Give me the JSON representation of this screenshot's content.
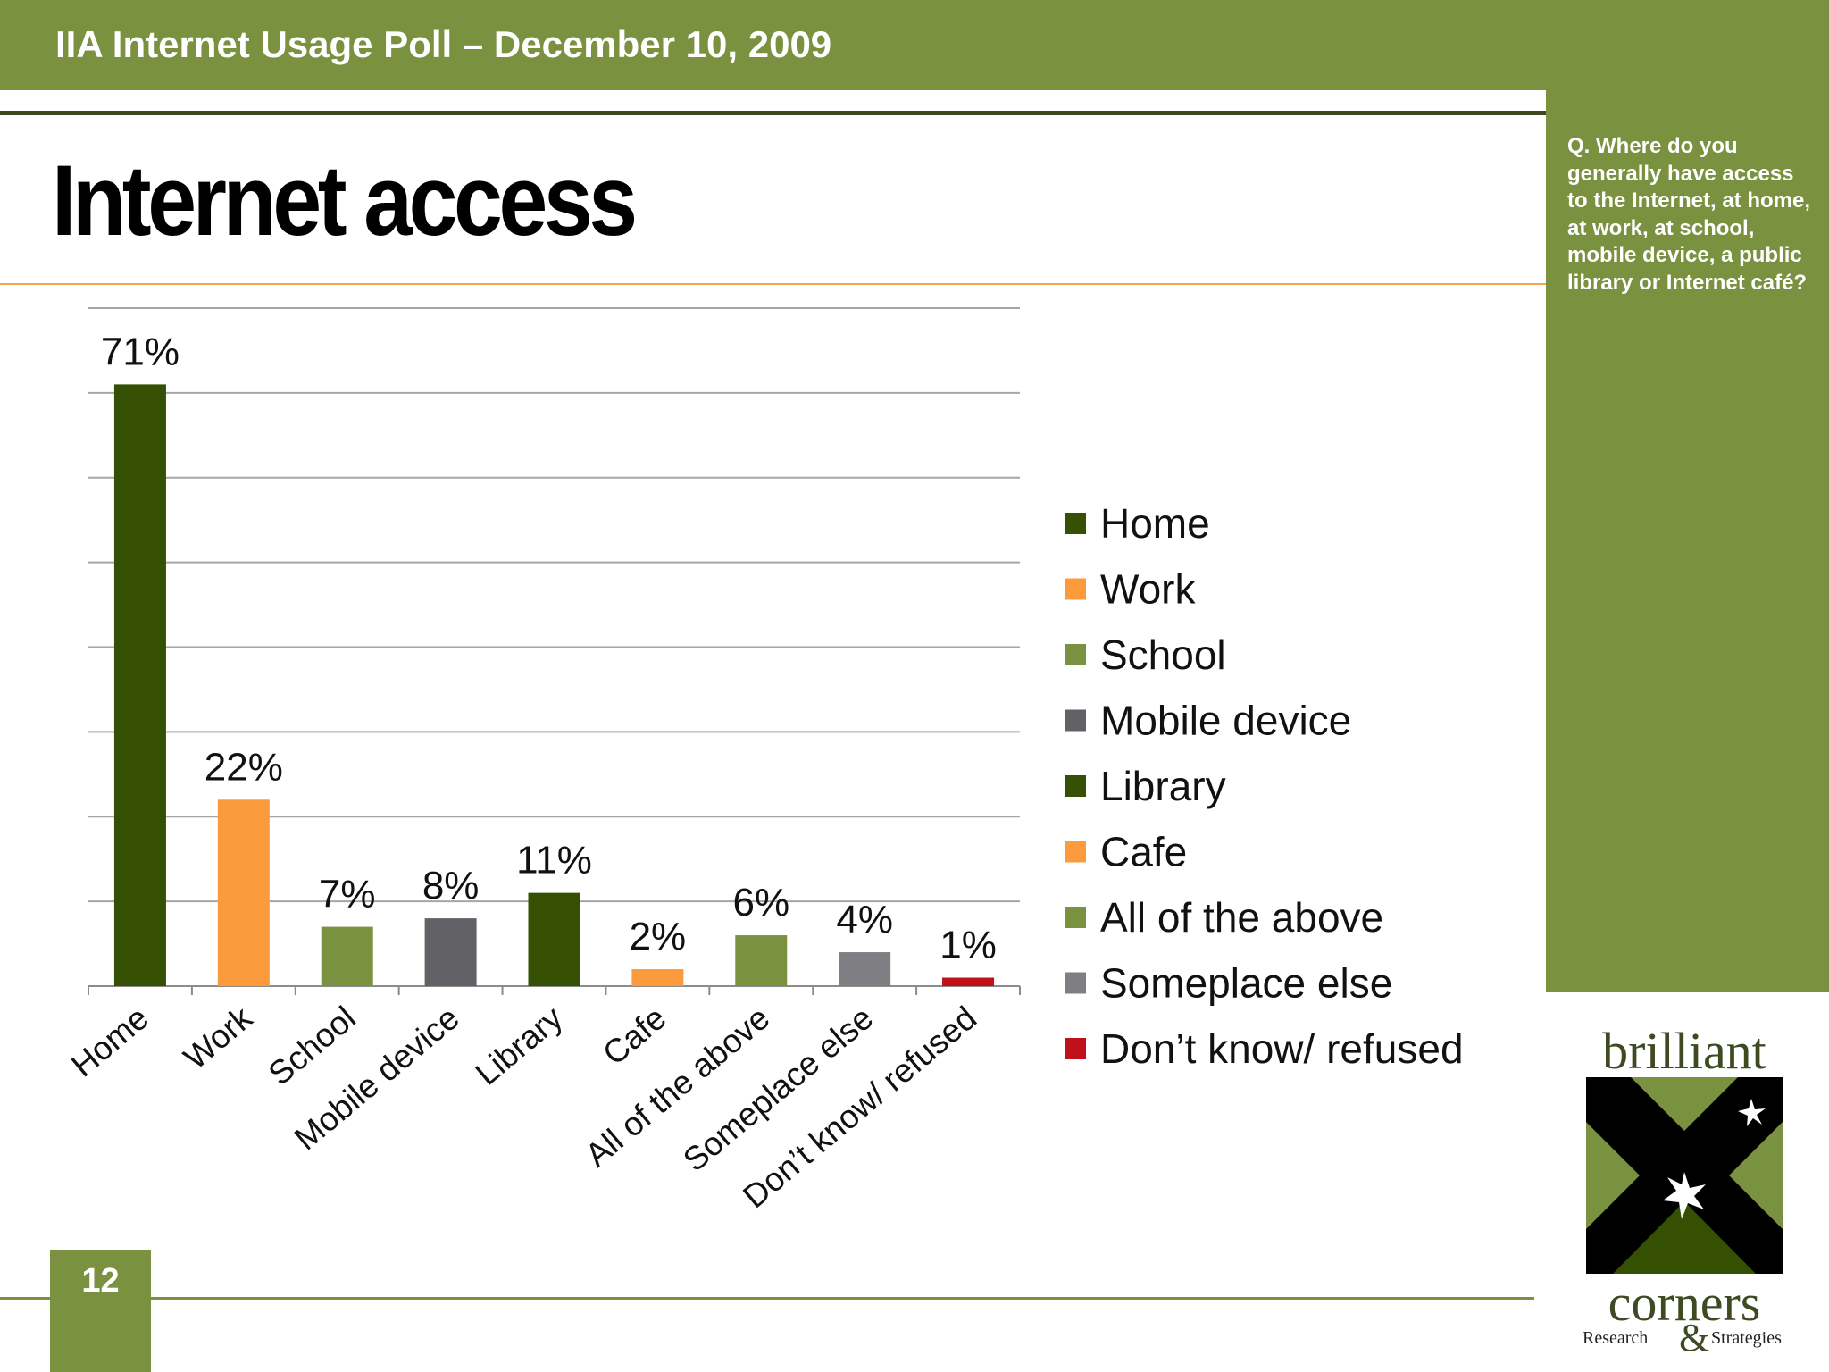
{
  "header": {
    "title": "IIA Internet Usage Poll – December 10, 2009"
  },
  "page": {
    "title": "Internet access",
    "number": "12"
  },
  "sidebar": {
    "question": "Q. Where do you generally have access to the Internet, at home, at work, at school, mobile device, a public library or Internet café?"
  },
  "logo": {
    "word_top": "brilliant",
    "word_bottom": "corners",
    "tag_left": "Research",
    "ampersand": "&",
    "tag_right": "Strategies"
  },
  "colors": {
    "accent_green": "#7a9140",
    "dark_green": "#354f03",
    "orange": "#fb9b3c",
    "gray_dark": "#626266",
    "gray": "#7f7f83",
    "red": "#c0111a"
  },
  "chart_data": {
    "type": "bar",
    "categories": [
      "Home",
      "Work",
      "School",
      "Mobile device",
      "Library",
      "Cafe",
      "All of the above",
      "Someplace else",
      "Don’t know/ refused"
    ],
    "values": [
      71,
      22,
      7,
      8,
      11,
      2,
      6,
      4,
      1
    ],
    "data_labels": [
      "71%",
      "22%",
      "7%",
      "8%",
      "11%",
      "2%",
      "6%",
      "4%",
      "1%"
    ],
    "bar_colors": [
      "#354f03",
      "#fb9b3c",
      "#7a9140",
      "#626266",
      "#354f03",
      "#fb9b3c",
      "#7a9140",
      "#7f7f83",
      "#c0111a"
    ],
    "ylim": [
      0,
      80
    ],
    "grid": true,
    "legend_position": "right",
    "legend": [
      {
        "label": "Home",
        "color": "#354f03"
      },
      {
        "label": "Work",
        "color": "#fb9b3c"
      },
      {
        "label": "School",
        "color": "#7a9140"
      },
      {
        "label": "Mobile device",
        "color": "#626266"
      },
      {
        "label": "Library",
        "color": "#354f03"
      },
      {
        "label": "Cafe",
        "color": "#fb9b3c"
      },
      {
        "label": "All of the above",
        "color": "#7a9140"
      },
      {
        "label": "Someplace else",
        "color": "#7f7f83"
      },
      {
        "label": "Don’t know/ refused",
        "color": "#c0111a"
      }
    ]
  }
}
